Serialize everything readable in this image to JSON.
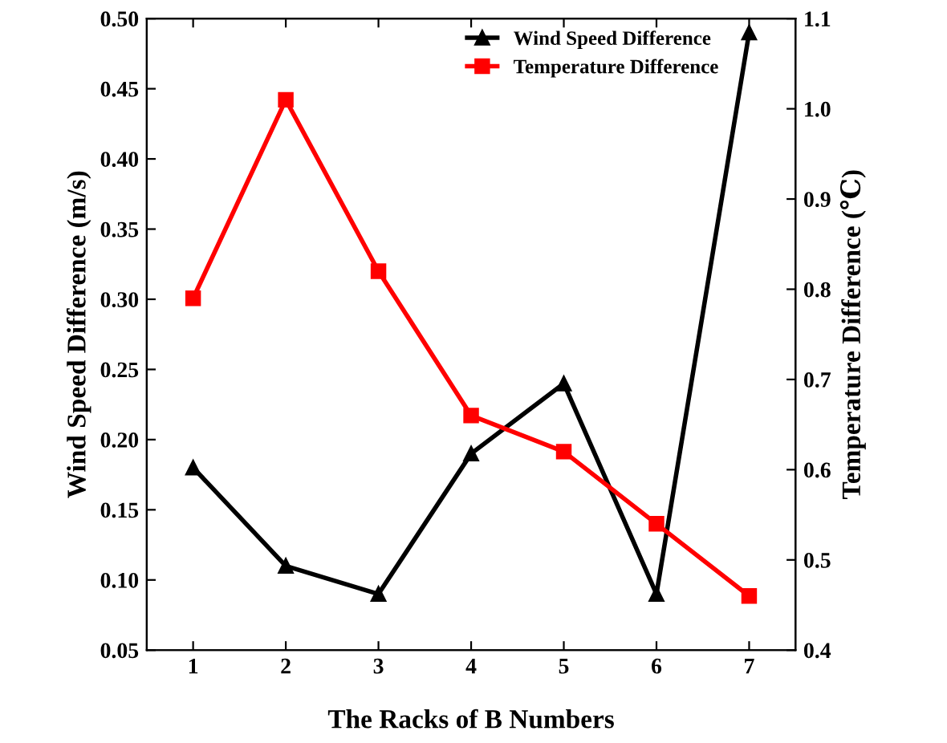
{
  "chart_data": {
    "type": "line",
    "xlabel": "The Racks of B Numbers",
    "ylabel": "Wind Speed Difference (m/s)",
    "y2label": "Temperature Difference (℃)",
    "x": [
      1,
      2,
      3,
      4,
      5,
      6,
      7
    ],
    "xlim": [
      0.5,
      7.5
    ],
    "xticks": [
      1,
      2,
      3,
      4,
      5,
      6,
      7
    ],
    "ylim": [
      0.05,
      0.5
    ],
    "yticks": [
      0.05,
      {
        "value": 0.1,
        "label": "0.10"
      },
      0.15,
      {
        "value": 0.2,
        "label": "0.20"
      },
      0.25,
      {
        "value": 0.3,
        "label": "0.30"
      },
      0.35,
      {
        "value": 0.4,
        "label": "0.40"
      },
      0.45,
      {
        "value": 0.5,
        "label": "0.50"
      }
    ],
    "y2lim": [
      0.4,
      1.1
    ],
    "y2ticks": [
      0.4,
      0.5,
      0.6,
      0.7,
      0.8,
      0.9,
      {
        "value": 1,
        "label": "1.0"
      },
      1.1
    ],
    "series": [
      {
        "name": "Wind Speed Difference",
        "color": "#000000",
        "marker": "triangle",
        "values": [
          0.18,
          0.11,
          0.09,
          0.19,
          0.24,
          0.09,
          0.49
        ]
      },
      {
        "name": "Temperature Difference",
        "color": "#ff0000",
        "marker": "square",
        "axis": "y2",
        "values": [
          0.79,
          1.01,
          0.82,
          0.66,
          0.62,
          0.54,
          0.46
        ]
      }
    ],
    "legend": "top right",
    "grid": false,
    "line_style": "solid"
  }
}
